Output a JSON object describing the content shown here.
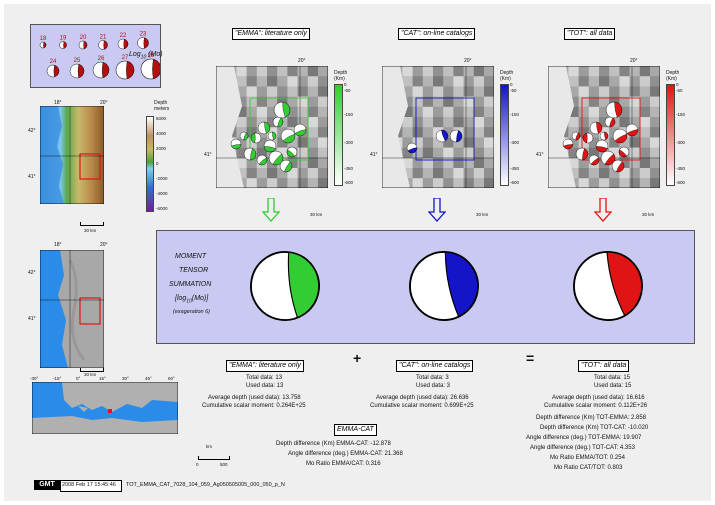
{
  "legend": {
    "mags": [
      "18",
      "19",
      "20",
      "21",
      "22",
      "23",
      "24",
      "25",
      "26",
      "27",
      "28"
    ],
    "label": "Log",
    "label_sub": "10",
    "label_tail": " (Mo)"
  },
  "panels": [
    {
      "title": "\"EMMA\": literature only",
      "color": "#33cc33",
      "scale": "30 km"
    },
    {
      "title": "\"CAT\": on-line catalogs",
      "color": "#1414c8",
      "scale": "30 km"
    },
    {
      "title": "\"TOT\": all data",
      "color": "#e01414",
      "scale": "30 km"
    }
  ],
  "depth_bar": {
    "title": "Depth",
    "unit": "(Km)",
    "ticks": [
      "0",
      "-50",
      "-150",
      "-300",
      "-450",
      "-600"
    ]
  },
  "topo_bar": {
    "title": "Depth",
    "unit": "meters",
    "ticks": [
      "6000",
      "4000",
      "2000",
      "0",
      "-2000",
      "-4000",
      "-6000"
    ]
  },
  "map_ticks": {
    "lon_18": "18°",
    "lon_20": "20°",
    "lat_42": "42°",
    "lat_41": "41°",
    "scale_30": "30 km",
    "scale_km": "km",
    "scale_0": "0",
    "scale_500": "500"
  },
  "euro_ticks": [
    "-30°",
    "-15°",
    "0°",
    "15°",
    "30°",
    "45°",
    "60°"
  ],
  "summation": {
    "lines": [
      "MOMENT",
      "TENSOR",
      "SUMMATION",
      "[log",
      "(Mo)]",
      "(exageration 6)"
    ],
    "log_sub": "10"
  },
  "ops": {
    "plus": "+",
    "equals": "="
  },
  "stats": {
    "emma": {
      "title": "\"EMMA\": literature only",
      "total": "Total data:   13",
      "used": "Used data:   13",
      "avg": "Average depth (used data):   13.758",
      "cum": "Cumulative scalar moment:  0.264E+25"
    },
    "cat": {
      "title": "\"CAT\": on-line catalogs",
      "total": "Total data:   3",
      "used": "Used data:   3",
      "avg": "Average depth (used data):   26.636",
      "cum": "Cumulative scalar moment:  0.699E+25"
    },
    "tot": {
      "title": "\"TOT\": all data",
      "total": "Total data:   15",
      "used": "Used data:   15",
      "avg": "Average depth (used data):   16.616",
      "cum": "Cumulative scalar moment:  0.112E+26"
    }
  },
  "emma_cat": {
    "title": "EMMA-CAT",
    "l1": "Depth difference (Km) EMMA-CAT:   -12.878",
    "l2": "Angle difference (deg.) EMMA-CAT:   21.368",
    "l3": "Mo Ratio EMMA/CAT:   0.316"
  },
  "tot_diff": {
    "l1": "Depth difference (Km) TOT-EMMA:   2.858",
    "l2": "Depth difference (Km) TOT-CAT:   -10.020",
    "l3": "Angle difference (deg.) TOT-EMMA:   19.907",
    "l4": "Angle difference (deg.) TOT-CAT:   4.353",
    "l5": "Mo Ratio EMMA/TOT:   0.254",
    "l6": "Mo Ratio CAT/TOT:   0.803"
  },
  "footer": {
    "logo": "GMT",
    "date": "2008 Feb 17 15:45:46",
    "file": "TOT_EMMA_CAT_7028_104_059_Ag050505005_000_050_p_N"
  }
}
